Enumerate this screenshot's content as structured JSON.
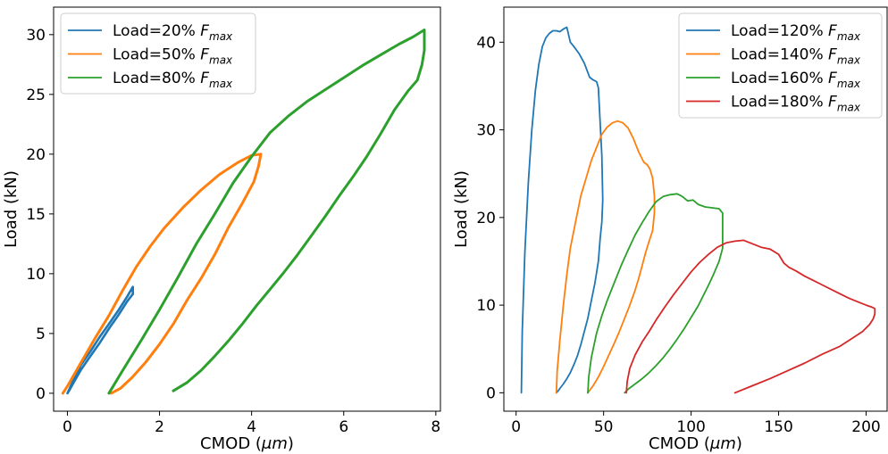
{
  "chart_data": [
    {
      "type": "line",
      "xlabel_main": "CMOD (",
      "xlabel_unit_greek": "μ",
      "xlabel_unit_rest": "m",
      "xlabel_close": ")",
      "ylabel": "Load (kN)",
      "xlim": [
        -0.3,
        8.1
      ],
      "ylim": [
        -1.5,
        32.3
      ],
      "xticks": [
        0,
        2,
        4,
        6,
        8
      ],
      "yticks": [
        0,
        5,
        10,
        15,
        20,
        25,
        30
      ],
      "grid": false,
      "legend_position": "top-left",
      "series": [
        {
          "name_prefix": "Load=20% ",
          "name_var": "F",
          "name_sub": "max",
          "color": "#1f77b4",
          "stroke": 2.6,
          "x": [
            0,
            0.05,
            0.15,
            0.3,
            0.5,
            0.7,
            0.9,
            1.1,
            1.3,
            1.42,
            1.42,
            1.3,
            1.1,
            0.9,
            0.7,
            0.5,
            0.3,
            0.15,
            0.05,
            0
          ],
          "y": [
            0,
            0.4,
            1.3,
            2.4,
            3.5,
            4.7,
            5.8,
            6.9,
            8.1,
            8.9,
            8.3,
            7.7,
            6.5,
            5.4,
            4.2,
            3.1,
            2.0,
            1.0,
            0.3,
            0
          ]
        },
        {
          "name_prefix": "Load=50% ",
          "name_var": "F",
          "name_sub": "max",
          "color": "#ff7f0e",
          "stroke": 3,
          "x": [
            -0.1,
            0,
            0.3,
            0.6,
            0.9,
            1.2,
            1.5,
            1.8,
            2.1,
            2.5,
            2.9,
            3.3,
            3.7,
            4.0,
            4.2,
            4.15,
            4.05,
            3.8,
            3.5,
            3.2,
            2.9,
            2.6,
            2.3,
            2.0,
            1.7,
            1.4,
            1.15,
            0.95
          ],
          "y": [
            0,
            0.6,
            2.6,
            4.6,
            6.5,
            8.6,
            10.6,
            12.3,
            13.8,
            15.5,
            17.0,
            18.3,
            19.3,
            19.9,
            20.0,
            19.0,
            17.7,
            15.9,
            13.9,
            11.6,
            9.6,
            7.8,
            5.8,
            4.1,
            2.6,
            1.3,
            0.4,
            0
          ]
        },
        {
          "name_prefix": "Load=80% ",
          "name_var": "F",
          "name_sub": "max",
          "color": "#2ca02c",
          "stroke": 3,
          "x": [
            0.9,
            1.2,
            1.6,
            2.0,
            2.4,
            2.8,
            3.2,
            3.6,
            4.0,
            4.4,
            4.8,
            5.2,
            5.6,
            6.0,
            6.4,
            6.8,
            7.2,
            7.5,
            7.75,
            7.75,
            7.7,
            7.6,
            7.4,
            7.1,
            6.8,
            6.5,
            6.2,
            5.9,
            5.6,
            5.3,
            5.0,
            4.7,
            4.4,
            4.1,
            3.8,
            3.5,
            3.2,
            2.9,
            2.6,
            2.3
          ],
          "y": [
            0,
            1.9,
            4.4,
            7.0,
            9.7,
            12.5,
            15.0,
            17.6,
            19.8,
            21.8,
            23.2,
            24.4,
            25.4,
            26.4,
            27.4,
            28.3,
            29.2,
            29.8,
            30.4,
            28.7,
            27.5,
            26.2,
            25.3,
            23.7,
            21.7,
            19.8,
            18.1,
            16.5,
            14.8,
            13.2,
            11.6,
            10.1,
            8.7,
            7.3,
            5.8,
            4.4,
            3.1,
            1.9,
            0.9,
            0.2
          ]
        }
      ]
    },
    {
      "type": "line",
      "xlabel_main": "CMOD (",
      "xlabel_unit_greek": "μ",
      "xlabel_unit_rest": "m",
      "xlabel_close": ")",
      "ylabel": "Load (kN)",
      "xlim": [
        -7,
        212
      ],
      "ylim": [
        -2.1,
        44
      ],
      "xticks": [
        0,
        50,
        100,
        150,
        200
      ],
      "yticks": [
        0,
        10,
        20,
        30,
        40
      ],
      "grid": false,
      "legend_position": "top-right",
      "series": [
        {
          "name_prefix": "Load=120% ",
          "name_var": "F",
          "name_sub": "max",
          "color": "#1f77b4",
          "stroke": 1.8,
          "x": [
            3,
            3.5,
            5,
            7,
            9,
            11,
            13,
            15,
            17,
            19,
            21,
            23,
            25,
            27,
            29,
            31,
            33,
            36,
            39,
            42,
            44,
            46,
            47,
            48,
            49,
            49.5,
            49,
            48,
            47,
            45,
            43,
            41,
            39,
            37,
            35,
            33,
            31,
            29,
            27,
            25,
            24,
            23
          ],
          "y": [
            0,
            7,
            16,
            24,
            30,
            34.5,
            37.5,
            39.5,
            40.5,
            41,
            41.3,
            41.3,
            41.2,
            41.5,
            41.7,
            40,
            39.5,
            38.7,
            37.6,
            36,
            35.7,
            35.5,
            34.8,
            31,
            27,
            22,
            19.5,
            17.5,
            15,
            12.5,
            10.5,
            8.5,
            7,
            5.5,
            4.2,
            3.2,
            2.3,
            1.6,
            1,
            0.5,
            0.2,
            0
          ]
        },
        {
          "name_prefix": "Load=140% ",
          "name_var": "F",
          "name_sub": "max",
          "color": "#ff7f0e",
          "stroke": 1.8,
          "x": [
            23,
            23.5,
            25,
            27,
            29,
            31,
            34,
            37,
            40,
            43,
            46,
            49,
            52,
            55,
            58,
            61,
            64,
            67,
            70,
            73,
            75,
            76.5,
            78,
            79,
            79,
            78,
            76,
            74,
            72,
            70,
            68,
            65,
            62,
            59,
            56,
            53,
            50,
            47,
            44,
            41
          ],
          "y": [
            0,
            2.5,
            6,
            10,
            13.5,
            16.5,
            19.5,
            22.5,
            24.5,
            26.5,
            28,
            29.5,
            30.3,
            30.8,
            31,
            30.8,
            30.2,
            29,
            27.5,
            26.3,
            26,
            25.5,
            24.5,
            22.5,
            20.5,
            18.5,
            17.3,
            16,
            14.5,
            13,
            11.7,
            10,
            8.5,
            7,
            5.6,
            4.3,
            3,
            1.8,
            0.8,
            0
          ]
        },
        {
          "name_prefix": "Load=160% ",
          "name_var": "F",
          "name_sub": "max",
          "color": "#2ca02c",
          "stroke": 1.8,
          "x": [
            41,
            41.5,
            43,
            46,
            49,
            52,
            56,
            60,
            64,
            68,
            72,
            76,
            80,
            84,
            88,
            92,
            95,
            98,
            101,
            104,
            108,
            112,
            116,
            118,
            118,
            116,
            113,
            110,
            107,
            104,
            100,
            96,
            92,
            88,
            84,
            80,
            76,
            72,
            68,
            64,
            62
          ],
          "y": [
            0,
            1.8,
            4,
            6.8,
            8.8,
            10.5,
            12.5,
            14.5,
            16.3,
            18,
            19.4,
            20.7,
            21.8,
            22.4,
            22.6,
            22.7,
            22.4,
            21.9,
            22.0,
            21.5,
            21.2,
            21.1,
            21.0,
            20.5,
            16.5,
            15,
            13.6,
            12.3,
            11.1,
            9.9,
            8.6,
            7.3,
            6.1,
            5,
            4,
            3.1,
            2.3,
            1.6,
            1,
            0.4,
            0
          ]
        },
        {
          "name_prefix": "Load=180% ",
          "name_var": "F",
          "name_sub": "max",
          "color": "#d62728",
          "stroke": 1.8,
          "x": [
            63,
            63.5,
            65,
            68,
            72,
            76,
            80,
            85,
            90,
            95,
            100,
            105,
            110,
            115,
            120,
            125,
            130,
            135,
            140,
            145,
            150,
            153,
            156,
            160,
            165,
            170,
            175,
            180,
            185,
            190,
            195,
            200,
            203,
            205,
            205,
            204,
            202,
            198,
            192,
            185,
            175,
            165,
            155,
            145,
            135,
            125
          ],
          "y": [
            0,
            1.3,
            2.8,
            4.3,
            5.8,
            7.0,
            8.3,
            9.8,
            11.2,
            12.5,
            13.8,
            14.9,
            15.8,
            16.6,
            17.1,
            17.3,
            17.4,
            17.0,
            16.6,
            16.4,
            15.8,
            14.8,
            14.3,
            13.9,
            13.3,
            12.8,
            12.3,
            11.8,
            11.3,
            10.8,
            10.4,
            10.0,
            9.8,
            9.6,
            9.0,
            8.4,
            7.8,
            7.0,
            6.2,
            5.3,
            4.4,
            3.4,
            2.5,
            1.6,
            0.8,
            0
          ]
        }
      ]
    }
  ]
}
